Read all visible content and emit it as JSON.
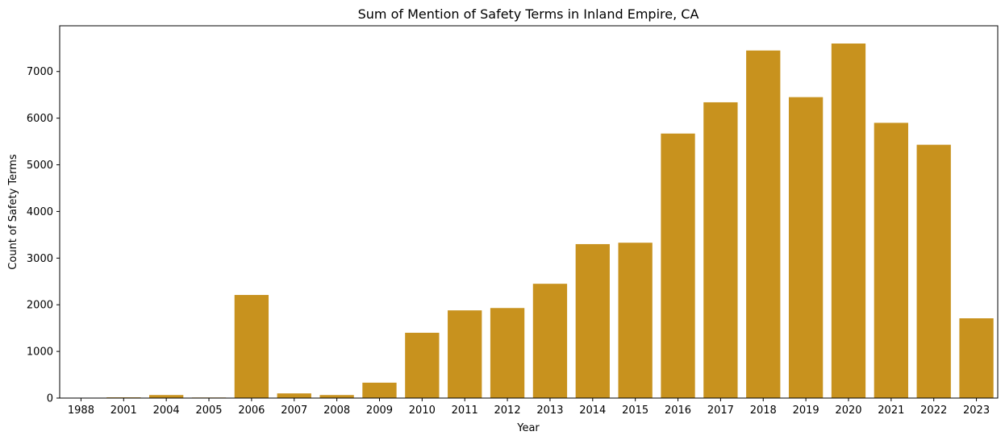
{
  "chart_data": {
    "type": "bar",
    "title": "Sum of Mention of Safety Terms in Inland Empire, CA",
    "xlabel": "Year",
    "ylabel": "Count of Safety Terms",
    "categories": [
      "1988",
      "2001",
      "2004",
      "2005",
      "2006",
      "2007",
      "2008",
      "2009",
      "2010",
      "2011",
      "2012",
      "2013",
      "2014",
      "2015",
      "2016",
      "2017",
      "2018",
      "2019",
      "2020",
      "2021",
      "2022",
      "2023"
    ],
    "values": [
      3,
      15,
      65,
      12,
      2210,
      100,
      65,
      330,
      1400,
      1880,
      1930,
      2450,
      3300,
      3330,
      5670,
      6340,
      7450,
      6450,
      7600,
      5900,
      5430,
      1710
    ],
    "ylim": [
      0,
      7980
    ],
    "yticks": [
      0,
      1000,
      2000,
      3000,
      4000,
      5000,
      6000,
      7000
    ],
    "bar_color": "#c8921e",
    "grid": false,
    "legend": "none"
  }
}
